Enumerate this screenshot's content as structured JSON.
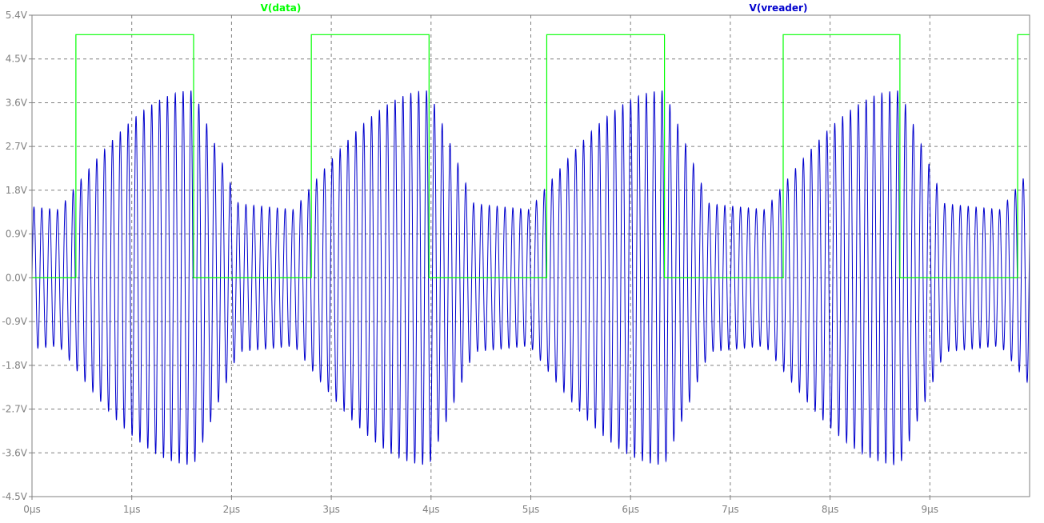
{
  "chart_data": {
    "type": "line",
    "x_unit": "µs",
    "xlim": [
      0,
      10
    ],
    "ylim": [
      -4.5,
      5.4
    ],
    "x_ticks": [
      0,
      1,
      2,
      3,
      4,
      5,
      6,
      7,
      8,
      9
    ],
    "x_tick_labels": [
      "0µs",
      "1µs",
      "2µs",
      "3µs",
      "4µs",
      "5µs",
      "6µs",
      "7µs",
      "8µs",
      "9µs"
    ],
    "y_ticks": [
      5.4,
      4.5,
      3.6,
      2.7,
      1.8,
      0.9,
      0.0,
      -0.9,
      -1.8,
      -2.7,
      -3.6,
      -4.5
    ],
    "y_tick_labels": [
      "5.4V",
      "4.5V",
      "3.6V",
      "2.7V",
      "1.8V",
      "0.9V",
      "0.0V",
      "-0.9V",
      "-1.8V",
      "-2.7V",
      "-3.6V",
      "-4.5V"
    ],
    "grid": true,
    "series": [
      {
        "name": "V(data)",
        "color": "#00ff00",
        "shape": "square",
        "high": 5.0,
        "low": 0.0,
        "x": [
          0,
          0.44,
          0.44,
          1.62,
          1.62,
          2.8,
          2.8,
          3.98,
          3.98,
          5.16,
          5.16,
          6.34,
          6.34,
          7.53,
          7.53,
          8.7,
          8.7,
          9.88,
          9.88,
          10.0
        ],
        "y": [
          0,
          0,
          5,
          5,
          0,
          0,
          5,
          5,
          0,
          0,
          5,
          5,
          0,
          0,
          5,
          5,
          0,
          0,
          5,
          5
        ]
      },
      {
        "name": "V(vreader)",
        "color": "#0000cd",
        "shape": "am_carrier",
        "carrier_period_us": 0.0787,
        "amplitude_min": 1.4,
        "amplitude_max": 3.85,
        "dc_offset": 0.0,
        "envelope_peaks_us": [
          1.62,
          3.98,
          6.34,
          8.7
        ]
      }
    ]
  }
}
